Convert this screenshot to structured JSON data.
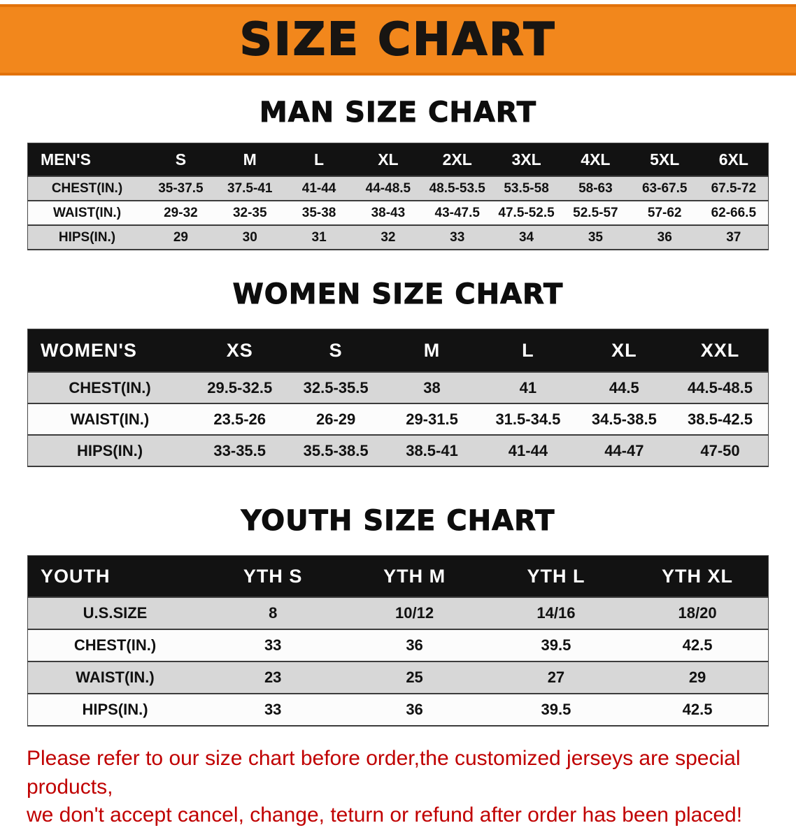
{
  "banner": {
    "title": "SIZE CHART",
    "bg_color": "#f2871c",
    "text_color": "#181512"
  },
  "colors": {
    "table_header_bg": "#121212",
    "table_header_text": "#ffffff",
    "row_shade": "#d7d7d7",
    "note_text": "#c00000"
  },
  "sections": [
    {
      "id": "men",
      "heading": "MAN SIZE CHART",
      "table": {
        "header": [
          "MEN'S",
          "S",
          "M",
          "L",
          "XL",
          "2XL",
          "3XL",
          "4XL",
          "5XL",
          "6XL"
        ],
        "rows": [
          {
            "label": "CHEST(IN.)",
            "values": [
              "35-37.5",
              "37.5-41",
              "41-44",
              "44-48.5",
              "48.5-53.5",
              "53.5-58",
              "58-63",
              "63-67.5",
              "67.5-72"
            ]
          },
          {
            "label": "WAIST(IN.)",
            "values": [
              "29-32",
              "32-35",
              "35-38",
              "38-43",
              "43-47.5",
              "47.5-52.5",
              "52.5-57",
              "57-62",
              "62-66.5"
            ]
          },
          {
            "label": "HIPS(IN.)",
            "values": [
              "29",
              "30",
              "31",
              "32",
              "33",
              "34",
              "35",
              "36",
              "37"
            ]
          }
        ]
      }
    },
    {
      "id": "women",
      "heading": "WOMEN SIZE CHART",
      "table": {
        "header": [
          "WOMEN'S",
          "XS",
          "S",
          "M",
          "L",
          "XL",
          "XXL"
        ],
        "rows": [
          {
            "label": "CHEST(IN.)",
            "values": [
              "29.5-32.5",
              "32.5-35.5",
              "38",
              "41",
              "44.5",
              "44.5-48.5"
            ]
          },
          {
            "label": "WAIST(IN.)",
            "values": [
              "23.5-26",
              "26-29",
              "29-31.5",
              "31.5-34.5",
              "34.5-38.5",
              "38.5-42.5"
            ]
          },
          {
            "label": "HIPS(IN.)",
            "values": [
              "33-35.5",
              "35.5-38.5",
              "38.5-41",
              "41-44",
              "44-47",
              "47-50"
            ]
          }
        ]
      }
    },
    {
      "id": "youth",
      "heading": "YOUTH SIZE CHART",
      "table": {
        "header": [
          "YOUTH",
          "YTH S",
          "YTH M",
          "YTH L",
          "YTH XL"
        ],
        "rows": [
          {
            "label": "U.S.SIZE",
            "values": [
              "8",
              "10/12",
              "14/16",
              "18/20"
            ]
          },
          {
            "label": "CHEST(IN.)",
            "values": [
              "33",
              "36",
              "39.5",
              "42.5"
            ]
          },
          {
            "label": "WAIST(IN.)",
            "values": [
              "23",
              "25",
              "27",
              "29"
            ]
          },
          {
            "label": "HIPS(IN.)",
            "values": [
              "33",
              "36",
              "39.5",
              "42.5"
            ]
          }
        ]
      }
    }
  ],
  "footer_note": {
    "line1": "Please refer to our size chart before order,the customized jerseys are special products,",
    "line2": "we don't accept cancel, change, teturn or refund after order has been placed!"
  }
}
